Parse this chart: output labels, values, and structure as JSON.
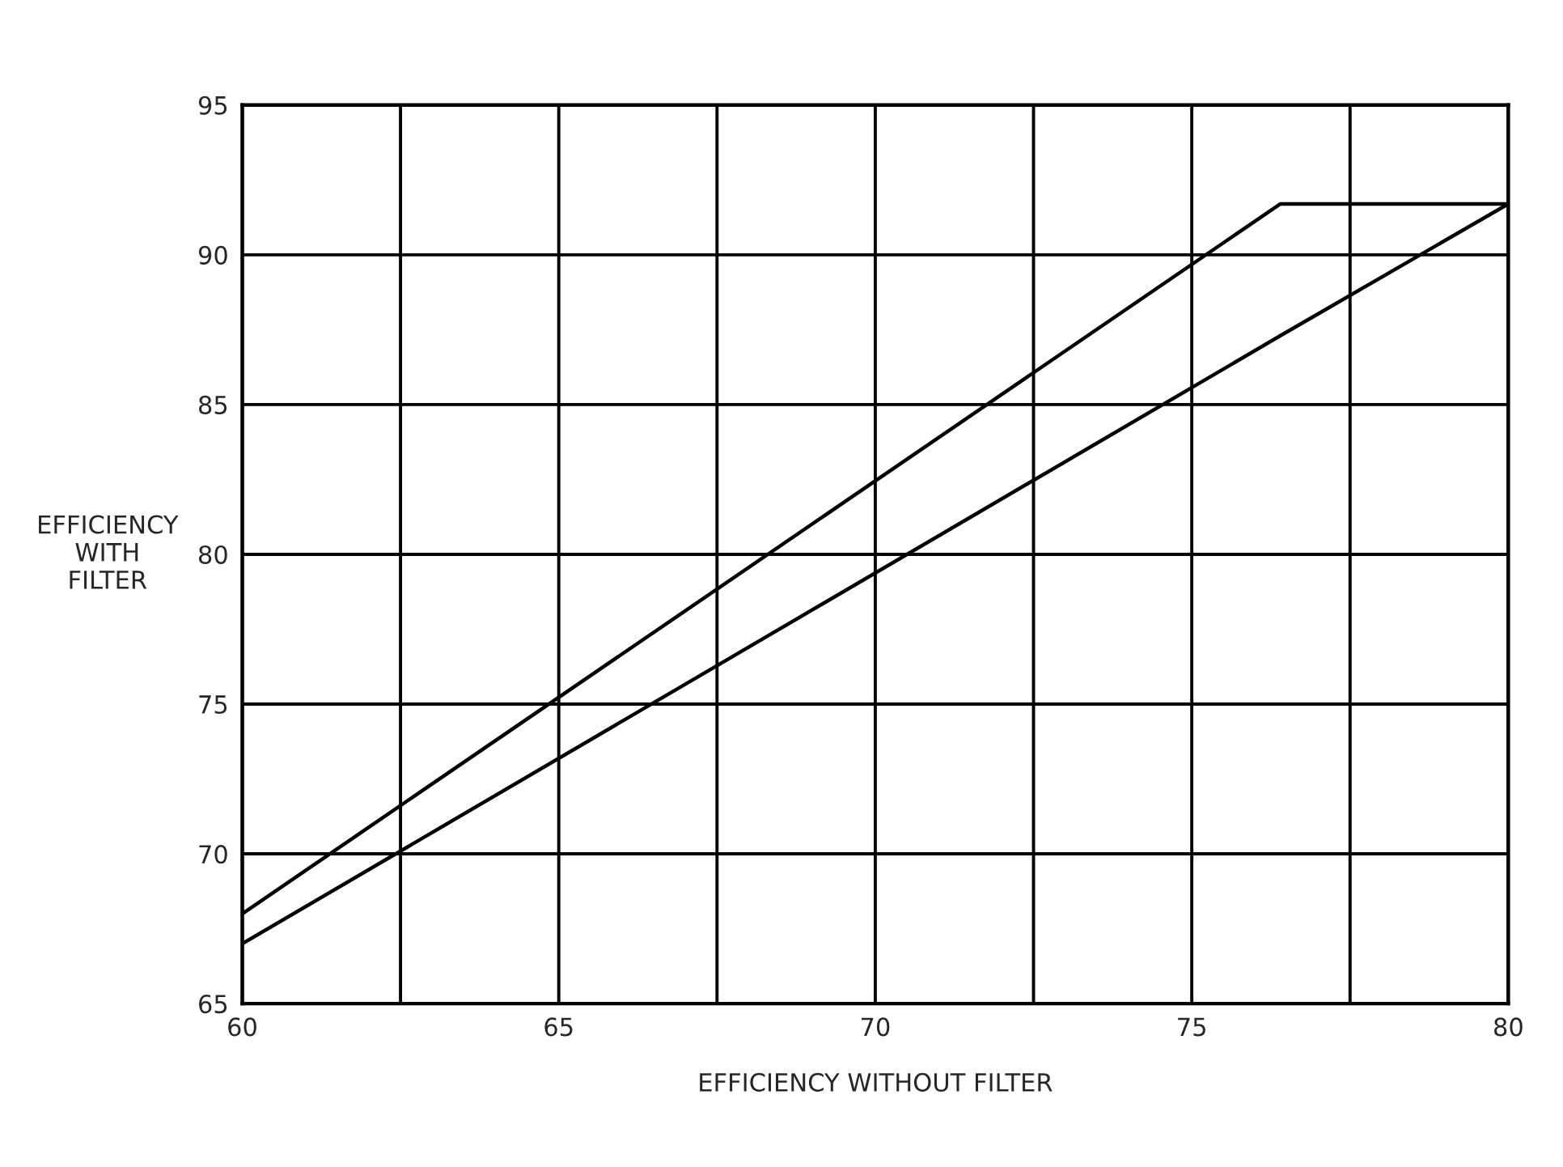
{
  "chart_data": {
    "type": "line",
    "xlabel": "EFFICIENCY WITHOUT FILTER",
    "ylabel": "EFFICIENCY\nWITH\nFILTER",
    "series": [
      {
        "color": "#000000",
        "x": [
          60,
          76.4,
          80
        ],
        "values": [
          68,
          91.7,
          91.7
        ]
      },
      {
        "color": "#000000",
        "x": [
          60,
          76.4,
          80
        ],
        "values": [
          67,
          87.3,
          91.7
        ]
      }
    ],
    "xlim": [
      60,
      80
    ],
    "ylim": [
      65,
      95
    ],
    "xticks": [
      60,
      {
        "value": 62.5,
        "label": null
      },
      65,
      {
        "value": 67.5,
        "label": null
      },
      70,
      {
        "value": 72.5,
        "label": null
      },
      75,
      {
        "value": 77.5,
        "label": null
      },
      80
    ],
    "yticks": [
      65,
      70,
      75,
      80,
      85,
      90,
      95
    ],
    "grid": true,
    "legend": false
  }
}
